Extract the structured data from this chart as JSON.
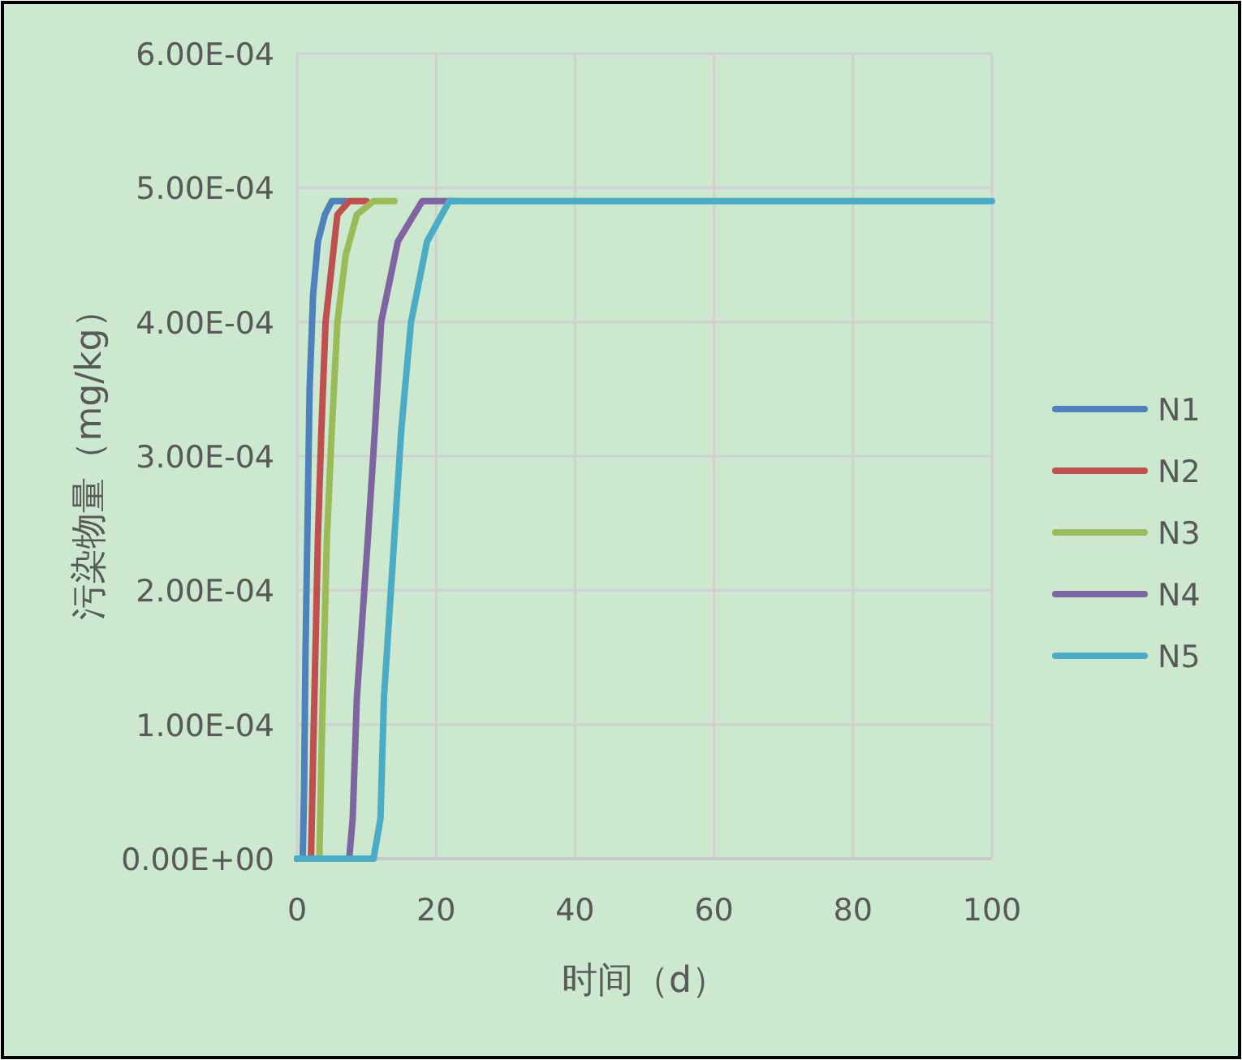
{
  "chart_data": {
    "type": "line",
    "xlabel": "时间（d）",
    "ylabel": "污染物量（mg/kg）",
    "xlim": [
      0,
      100
    ],
    "ylim": [
      0,
      0.0006
    ],
    "xticks": [
      0,
      20,
      40,
      60,
      80,
      100
    ],
    "yticks": [
      {
        "value": 0,
        "label": "0.00E+00"
      },
      {
        "value": 0.0001,
        "label": "1.00E-04"
      },
      {
        "value": 0.0002,
        "label": "2.00E-04"
      },
      {
        "value": 0.0003,
        "label": "3.00E-04"
      },
      {
        "value": 0.0004,
        "label": "4.00E-04"
      },
      {
        "value": 0.0005,
        "label": "5.00E-04"
      },
      {
        "value": 0.0006,
        "label": "6.00E-04"
      }
    ],
    "grid": true,
    "legend": "right",
    "series": [
      {
        "name": "N1",
        "color": "#4f81bd",
        "x": [
          0,
          0.8,
          1.0,
          1.2,
          1.5,
          1.8,
          2.3,
          3.0,
          4.0,
          5.0,
          7.0
        ],
        "values": [
          0,
          0,
          5e-05,
          0.00015,
          0.00025,
          0.00035,
          0.00042,
          0.00046,
          0.00048,
          0.00049,
          0.00049
        ]
      },
      {
        "name": "N2",
        "color": "#c0504d",
        "x": [
          0,
          2.0,
          2.4,
          3.0,
          3.5,
          4.1,
          5.8,
          7.5,
          10
        ],
        "values": [
          0,
          0,
          0.0001,
          0.00024,
          0.00032,
          0.0004,
          0.00048,
          0.00049,
          0.00049
        ]
      },
      {
        "name": "N3",
        "color": "#9bbb59",
        "x": [
          0,
          3.2,
          3.6,
          4.3,
          5.0,
          5.8,
          7.0,
          8.6,
          11,
          14
        ],
        "values": [
          0,
          0,
          0.0001,
          0.00024,
          0.00032,
          0.0004,
          0.00045,
          0.00048,
          0.00049,
          0.00049
        ]
      },
      {
        "name": "N4",
        "color": "#8064a2",
        "x": [
          0,
          7.5,
          8.0,
          8.6,
          10.2,
          11.2,
          12.1,
          14.5,
          18,
          22.7
        ],
        "values": [
          0,
          0,
          3e-05,
          0.00012,
          0.00024,
          0.00032,
          0.0004,
          0.00046,
          0.00049,
          0.00049
        ]
      },
      {
        "name": "N5",
        "color": "#4bacc6",
        "x": [
          0,
          11,
          12.0,
          12.5,
          14,
          15,
          16.4,
          18.7,
          21.9,
          27,
          60,
          100
        ],
        "values": [
          0,
          0,
          3e-05,
          0.00012,
          0.00024,
          0.00032,
          0.0004,
          0.00046,
          0.00049,
          0.00049,
          0.00049,
          0.00049
        ]
      }
    ]
  }
}
